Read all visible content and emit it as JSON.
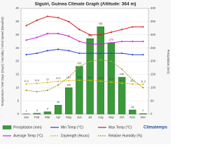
{
  "chart_data": {
    "type": "combo",
    "title": "Siguiri, Guinea Climate Graph (Altitude: 364 m)",
    "y_label": "Temperature / Wet Days (Days) / Humidity / Wind Speed (Beaufort)",
    "y2_label": "Precipitation (mm)",
    "watermark": "Climatemps",
    "categories": [
      "Jan",
      "Feb",
      "Mar",
      "Apr",
      "May",
      "Jun",
      "Jul",
      "Aug",
      "Sep",
      "Oct",
      "Nov",
      "Dec"
    ],
    "ylim": [
      0,
      40
    ],
    "yticks": [
      0,
      5,
      10,
      15,
      20,
      25,
      30,
      35,
      40
    ],
    "y2lim": [
      0,
      400
    ],
    "y2ticks": [
      0,
      50,
      100,
      150,
      200,
      250,
      300,
      350,
      400
    ],
    "grid": true,
    "series": [
      {
        "name": "Precipitation (mm)",
        "type": "bar",
        "axis": "y2",
        "color": "#3a9a3a",
        "labels": true,
        "values": [
          1,
          3,
          9,
          34,
          100,
          181,
          286,
          331,
          270,
          140,
          16,
          2
        ]
      },
      {
        "name": "Min Temp (°C)",
        "type": "line",
        "color": "#2a3fd0",
        "values": [
          22.5,
          23,
          24,
          24.5,
          24,
          23,
          23,
          23,
          23,
          23,
          22.5,
          22.5
        ]
      },
      {
        "name": "Max Temp (°C)",
        "type": "line",
        "color": "#d02020",
        "values": [
          33.5,
          35.5,
          37,
          36.5,
          35,
          32,
          30,
          30,
          31,
          32,
          33,
          33
        ]
      },
      {
        "name": "Average Temp (°C)",
        "type": "line",
        "color": "#cc22cc",
        "values": [
          28,
          29,
          30.5,
          30.5,
          29.5,
          27.5,
          26.5,
          26.5,
          27,
          27.5,
          27.5,
          27.5
        ]
      },
      {
        "name": "Daylength (Hours)",
        "type": "line",
        "dashed": true,
        "color": "#e0b800",
        "labels": true,
        "values": [
          11.4,
          11.6,
          12,
          12.4,
          12.7,
          12.8,
          12.7,
          12.5,
          12.1,
          11.7,
          11.4,
          11.3
        ]
      },
      {
        "name": "Relative Humidity (%)",
        "type": "line",
        "dashed": true,
        "color": "#9aa040",
        "values": [
          9,
          8.5,
          9,
          11,
          14,
          18,
          20,
          20.5,
          20,
          17,
          13,
          10
        ]
      }
    ]
  }
}
